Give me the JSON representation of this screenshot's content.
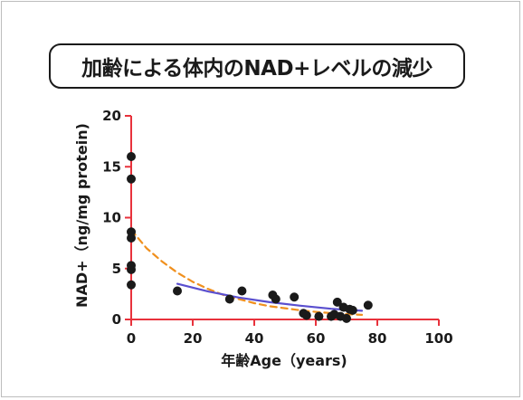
{
  "chart_data": {
    "type": "scatter",
    "title": "加齢による体内のNAD+レベルの減少",
    "xlabel": "年齢Age（years)",
    "ylabel": "NAD+（ng/mg protein)",
    "xlim": [
      0,
      100
    ],
    "ylim": [
      0,
      20
    ],
    "xticks": [
      0,
      20,
      40,
      60,
      80,
      100
    ],
    "yticks": [
      0,
      5,
      10,
      15,
      20
    ],
    "tick_labels_x": [
      "0",
      "20",
      "40",
      "60",
      "80",
      "100"
    ],
    "tick_labels_y": [
      "0",
      "5",
      "10",
      "15",
      "20"
    ],
    "grid": false,
    "axis_color": "#e8323c",
    "point_color": "#1a1a1a",
    "points": [
      {
        "x": 0,
        "y": 16.0
      },
      {
        "x": 0,
        "y": 13.8
      },
      {
        "x": 0,
        "y": 8.6
      },
      {
        "x": 0,
        "y": 8.0
      },
      {
        "x": 0,
        "y": 5.3
      },
      {
        "x": 0,
        "y": 4.9
      },
      {
        "x": 0,
        "y": 3.4
      },
      {
        "x": 15,
        "y": 2.8
      },
      {
        "x": 32,
        "y": 2.0
      },
      {
        "x": 36,
        "y": 2.8
      },
      {
        "x": 46,
        "y": 2.4
      },
      {
        "x": 47,
        "y": 2.0
      },
      {
        "x": 53,
        "y": 2.2
      },
      {
        "x": 56,
        "y": 0.6
      },
      {
        "x": 57,
        "y": 0.4
      },
      {
        "x": 61,
        "y": 0.3
      },
      {
        "x": 65,
        "y": 0.3
      },
      {
        "x": 66,
        "y": 0.5
      },
      {
        "x": 67,
        "y": 1.7
      },
      {
        "x": 68,
        "y": 0.3
      },
      {
        "x": 69,
        "y": 1.2
      },
      {
        "x": 70,
        "y": 0.1
      },
      {
        "x": 71,
        "y": 1.0
      },
      {
        "x": 72,
        "y": 0.9
      },
      {
        "x": 77,
        "y": 1.4
      }
    ],
    "fit_lines": [
      {
        "style": "dashed",
        "color": "#f0901e",
        "x": [
          0,
          5,
          10,
          15,
          20,
          25,
          30,
          35,
          40,
          45,
          50,
          55,
          60,
          65,
          70,
          75
        ],
        "y": [
          8.8,
          7.0,
          5.7,
          4.6,
          3.7,
          3.0,
          2.4,
          2.0,
          1.6,
          1.3,
          1.1,
          0.9,
          0.75,
          0.62,
          0.52,
          0.45
        ]
      },
      {
        "style": "solid",
        "color": "#5a4fcf",
        "x": [
          15,
          25,
          35,
          45,
          55,
          65,
          75
        ],
        "y": [
          3.5,
          2.75,
          2.15,
          1.7,
          1.35,
          1.05,
          0.85
        ]
      }
    ]
  }
}
